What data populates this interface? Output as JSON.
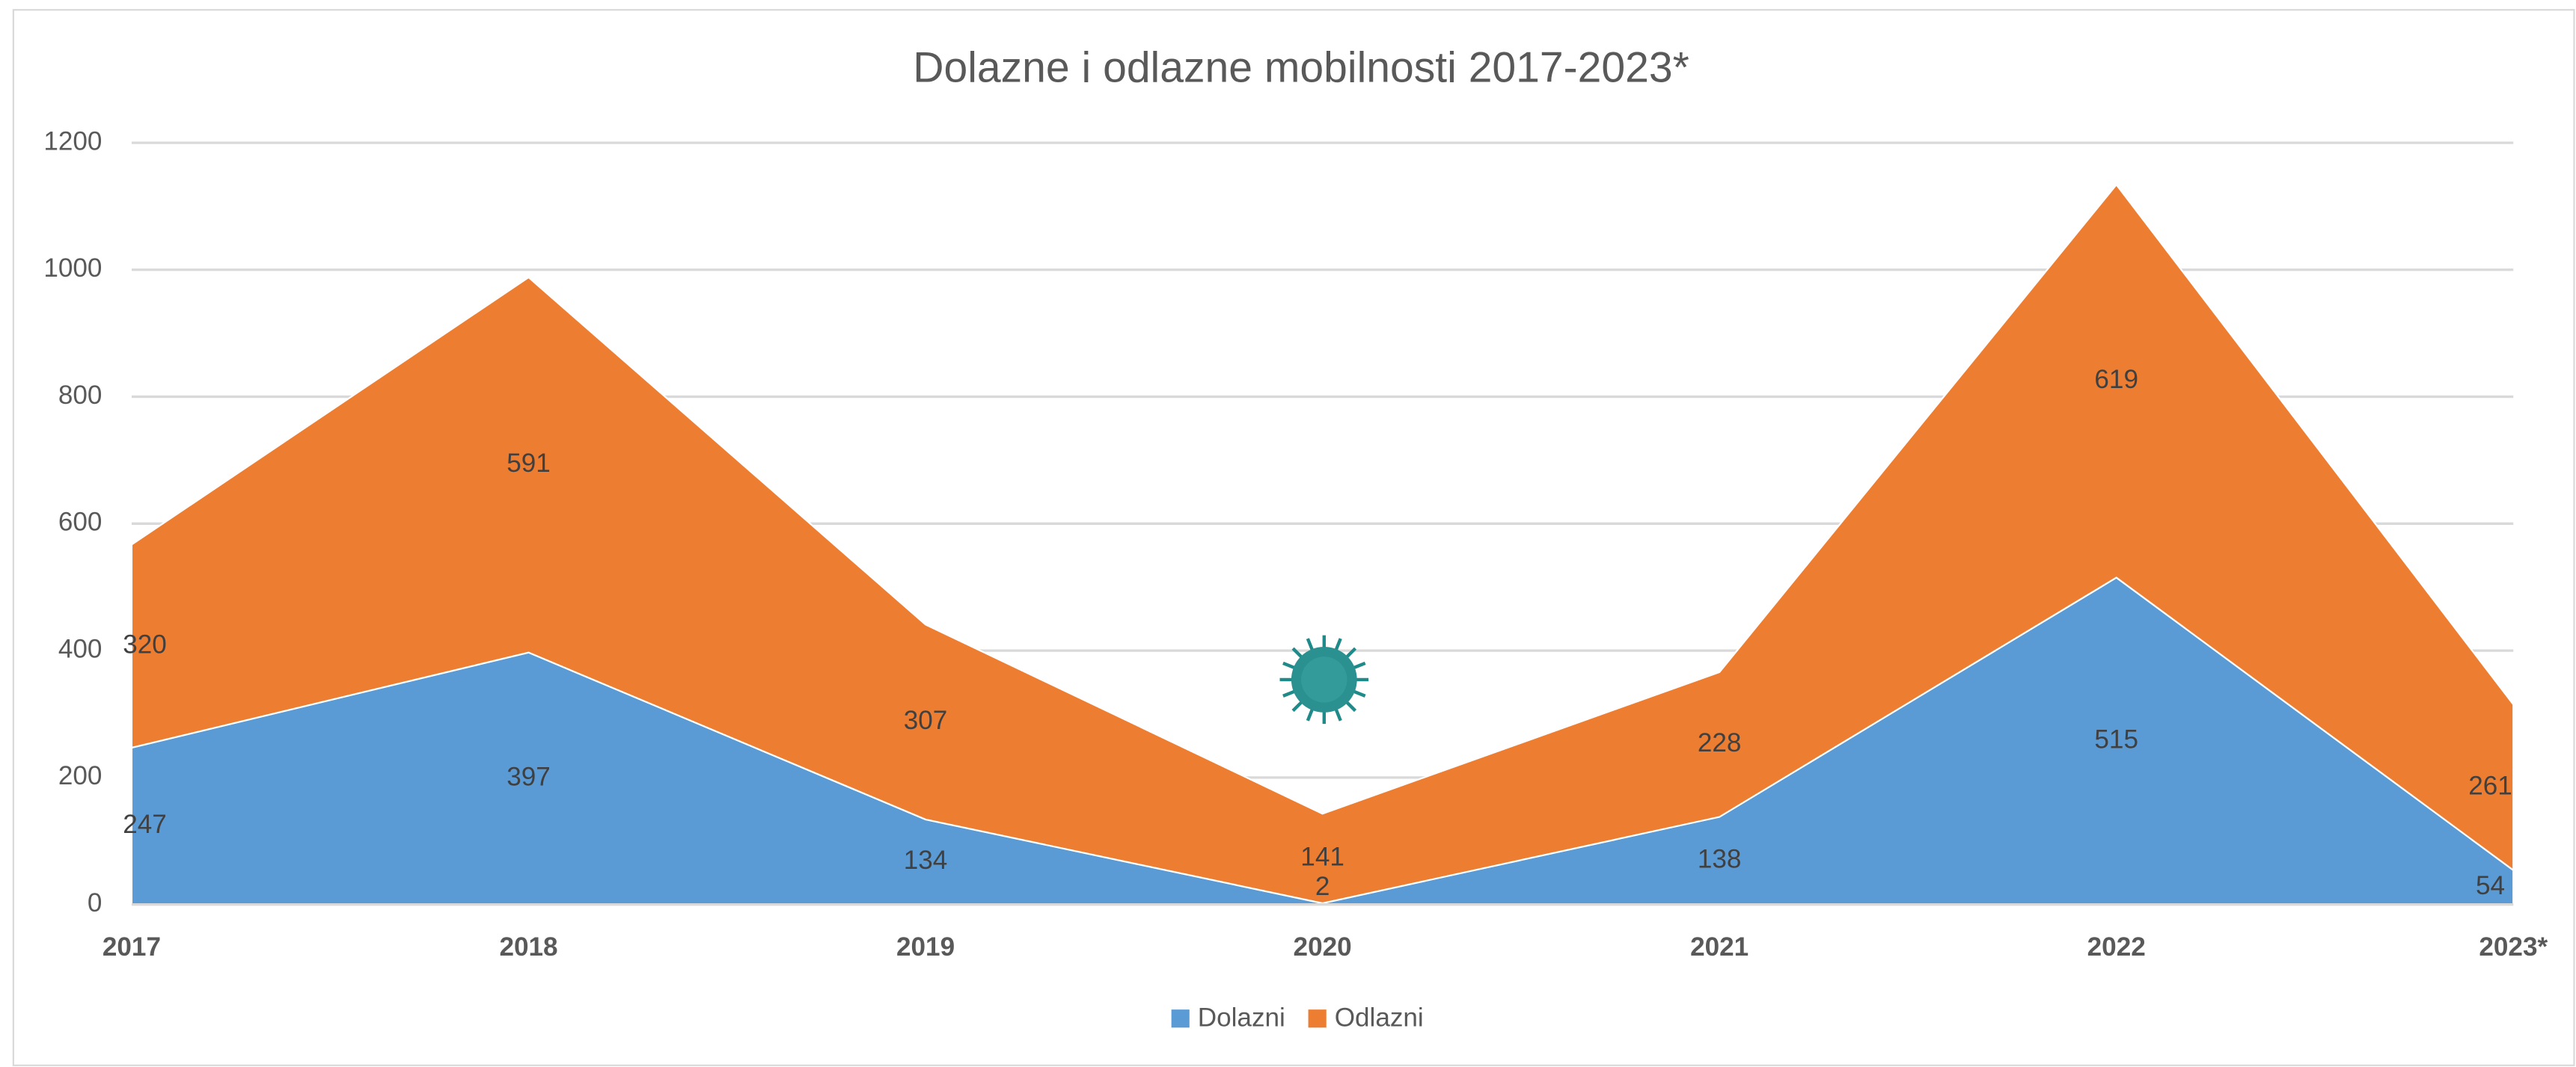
{
  "chart_data": {
    "type": "stacked-area",
    "title": "Dolazne i odlazne mobilnosti 2017-2023*",
    "categories": [
      "2017",
      "2018",
      "2019",
      "2020",
      "2021",
      "2022",
      "2023*"
    ],
    "series": [
      {
        "name": "Dolazni",
        "color": "#5b9bd5",
        "values": [
          247,
          397,
          134,
          2,
          138,
          515,
          54
        ]
      },
      {
        "name": "Odlazni",
        "color": "#ed7d31",
        "values": [
          320,
          591,
          307,
          141,
          228,
          619,
          261
        ]
      }
    ],
    "ylim": [
      0,
      1200
    ],
    "yticks": [
      0,
      200,
      400,
      600,
      800,
      1000,
      1200
    ],
    "grid": true,
    "legend": "bottom"
  }
}
